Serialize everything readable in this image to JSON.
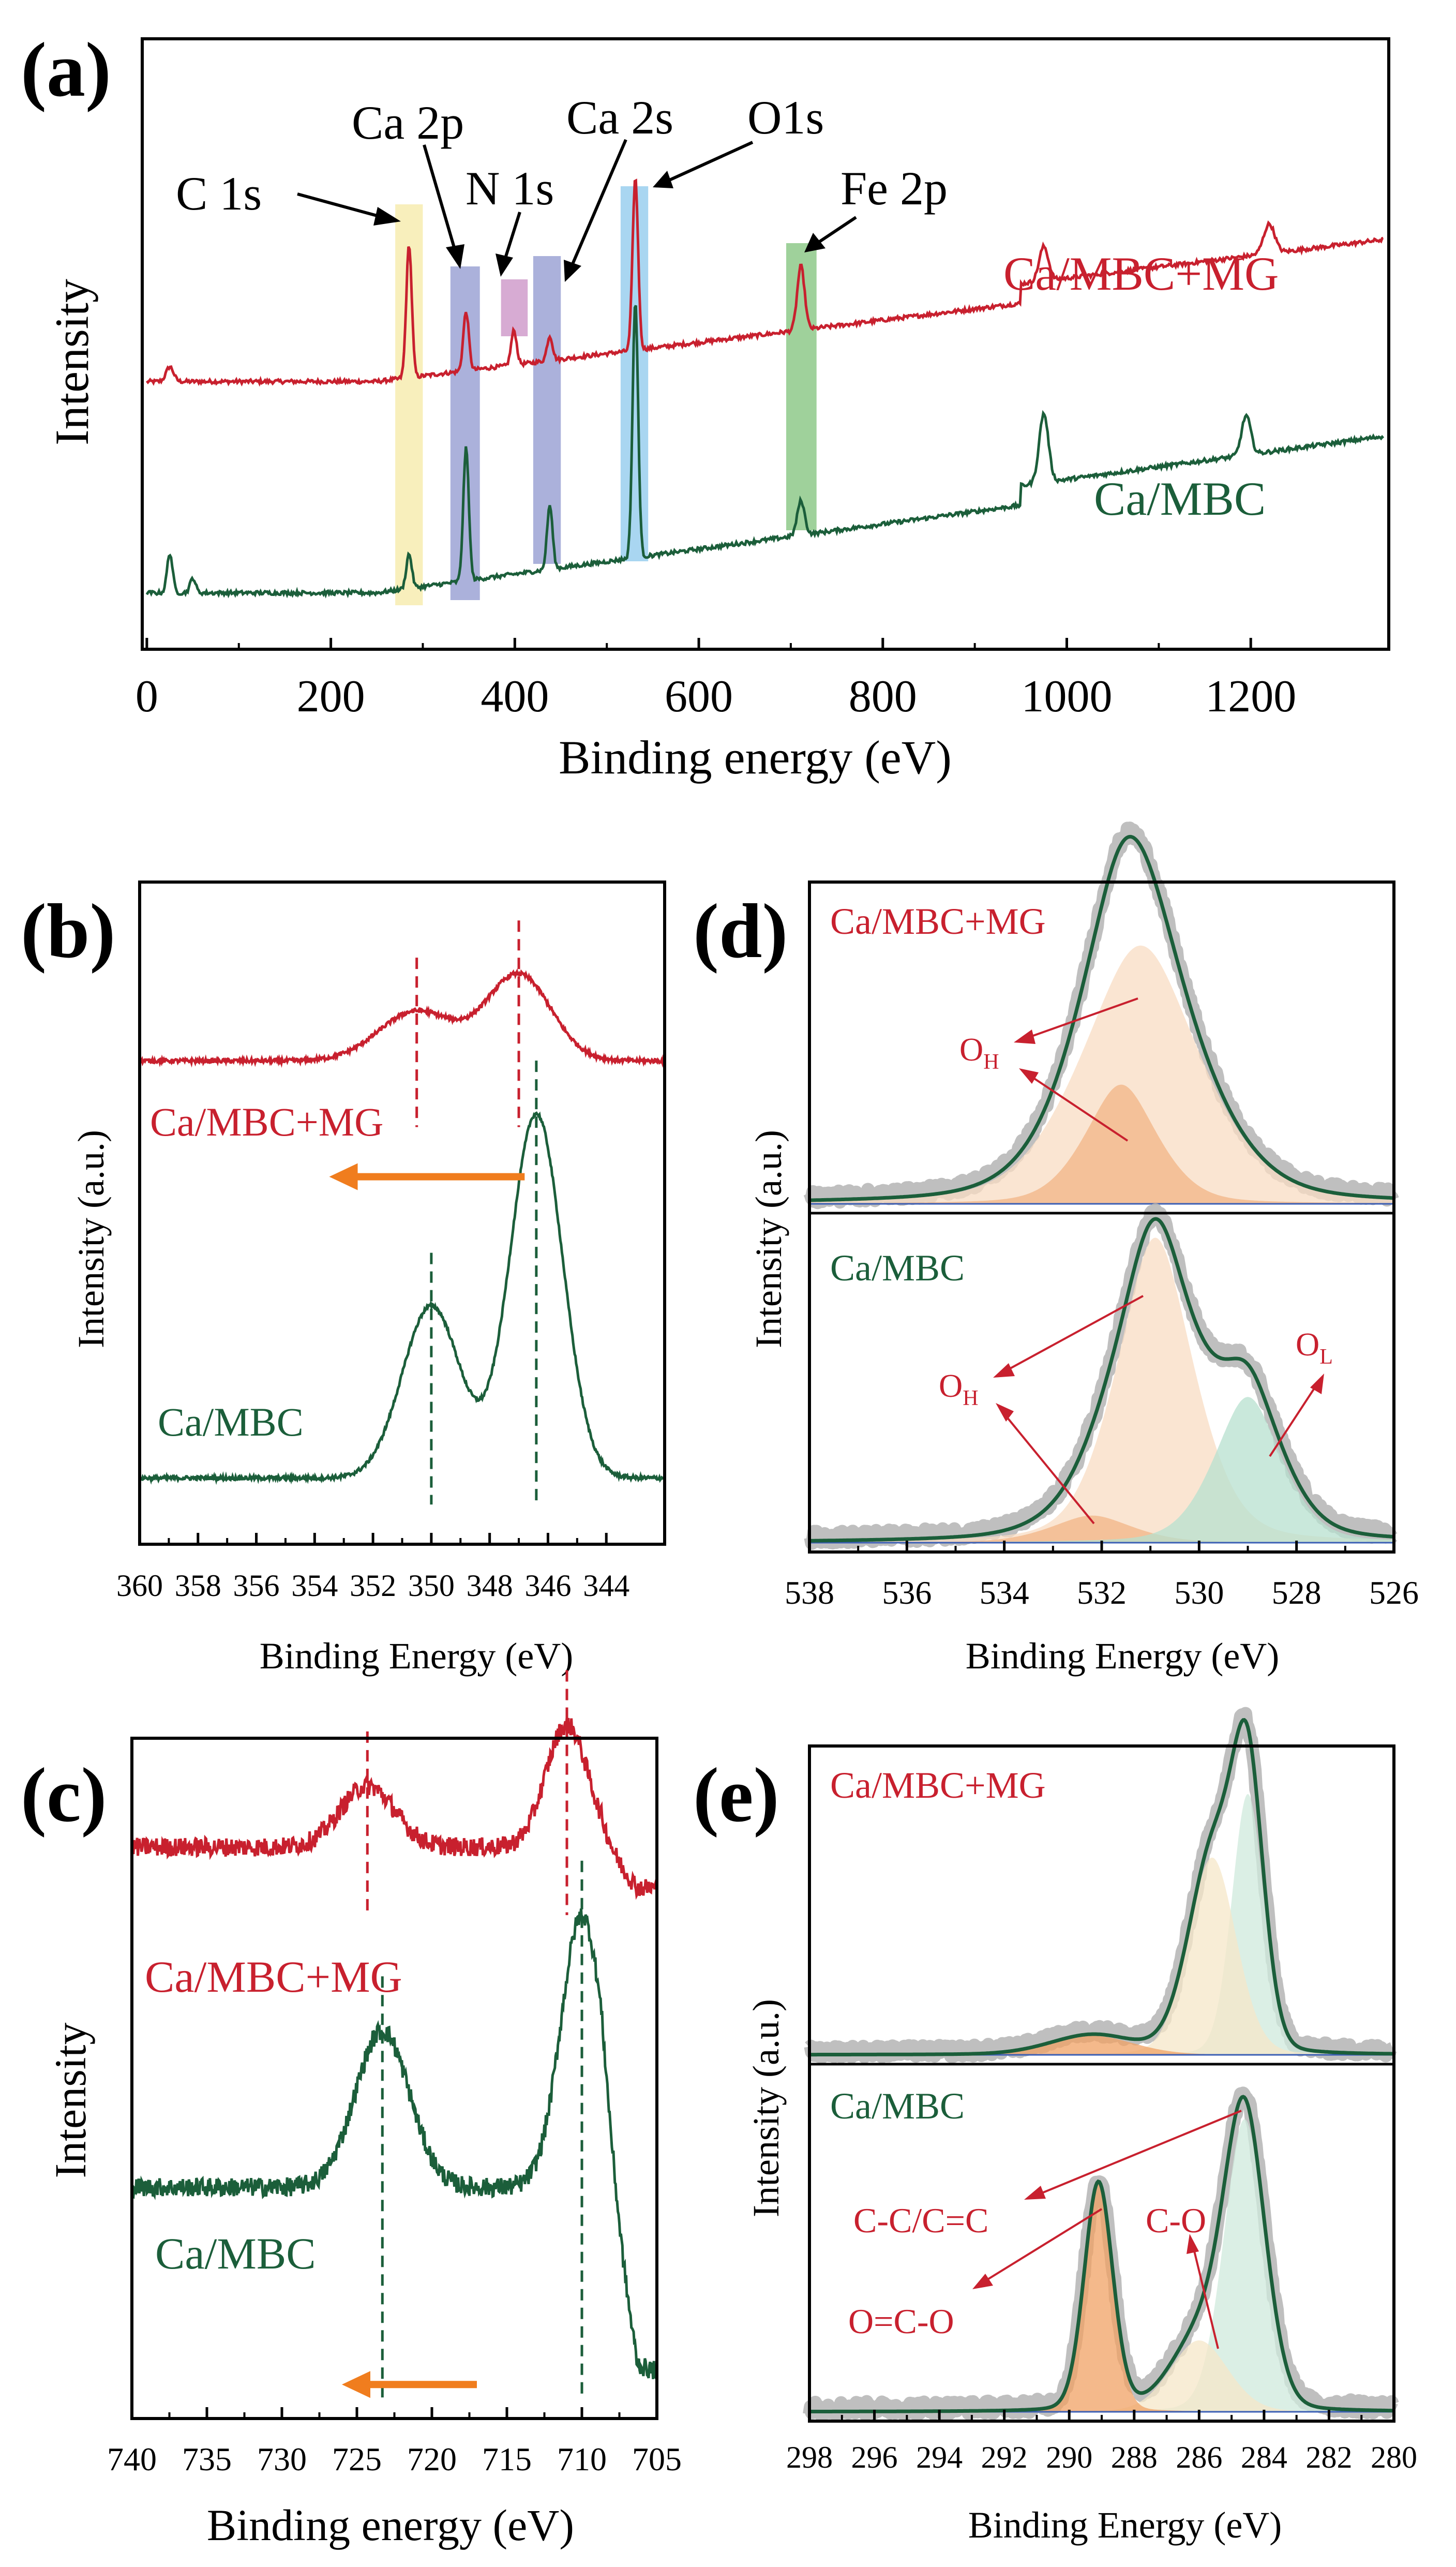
{
  "colors": {
    "red": "#c8202e",
    "green": "#1b5e3a",
    "orange": "#f07d1e",
    "gray": "#b4b4b4",
    "axis": "#000000",
    "c1s_band": "#f6e9a6",
    "ca2p_band": "#8f97cf",
    "n1s_band": "#c98fc4",
    "ca2s_band": "#8f97cf",
    "o1s_band": "#8cc8ec",
    "fe2p_band": "#7fc27a",
    "fit_oh_light": "#f8dcc3",
    "fit_oh_dark": "#f2b486",
    "fit_ol": "#b7e0cf",
    "fit_cc": "#cfe9dc",
    "fit_co": "#f5e7c8",
    "fit_oco": "#f0a264"
  },
  "chart_data": [
    {
      "id": "a",
      "type": "line",
      "panel_label": "(a)",
      "title": "",
      "xlabel": "Binding energy (eV)",
      "ylabel": "Intensity",
      "xlim": [
        -5,
        1350
      ],
      "ylim": [
        0,
        1
      ],
      "xticks": [
        0,
        200,
        400,
        600,
        800,
        1000,
        1200
      ],
      "xticklabels": [
        "0",
        "200",
        "400",
        "600",
        "800",
        "1000",
        "1200"
      ],
      "series": [
        {
          "name": "Ca/MBC+MG",
          "color": "#c8202e",
          "baseline": 0.45,
          "slope": 0.25,
          "peaks": [
            [
              25,
              0.03,
              4
            ],
            [
              285,
              0.27,
              3
            ],
            [
              347,
              0.12,
              3
            ],
            [
              399,
              0.07,
              3
            ],
            [
              438,
              0.05,
              3
            ],
            [
              531,
              0.35,
              3
            ],
            [
              711,
              0.13,
              4
            ],
            [
              975,
              0.07,
              5
            ],
            [
              1220,
              0.06,
              6
            ]
          ]
        },
        {
          "name": "Ca/MBC",
          "color": "#1b5e3a",
          "baseline": 0.02,
          "slope": 0.28,
          "peaks": [
            [
              25,
              0.08,
              3
            ],
            [
              50,
              0.03,
              3
            ],
            [
              285,
              0.07,
              3
            ],
            [
              347,
              0.27,
              3
            ],
            [
              438,
              0.13,
              3
            ],
            [
              531,
              0.52,
              3
            ],
            [
              711,
              0.07,
              4
            ],
            [
              975,
              0.14,
              5
            ],
            [
              1195,
              0.08,
              5
            ]
          ]
        }
      ],
      "legend": [
        "Ca/MBC+MG",
        "Ca/MBC"
      ],
      "bands": [
        {
          "label": "C 1s",
          "from": 270,
          "to": 300,
          "color_key": "c1s_band"
        },
        {
          "label": "Ca 2p",
          "from": 330,
          "to": 362,
          "color_key": "ca2p_band"
        },
        {
          "label": "N 1s",
          "from": 385,
          "to": 414,
          "color_key": "n1s_band"
        },
        {
          "label": "Ca 2s",
          "from": 420,
          "to": 450,
          "color_key": "ca2s_band"
        },
        {
          "label": "O1s",
          "from": 515,
          "to": 545,
          "color_key": "o1s_band"
        },
        {
          "label": "Fe 2p",
          "from": 695,
          "to": 728,
          "color_key": "fe2p_band"
        }
      ],
      "annotations": [
        "C 1s",
        "Ca 2p",
        "N 1s",
        "Ca 2s",
        "O1s",
        "Fe 2p"
      ]
    },
    {
      "id": "b",
      "type": "line",
      "panel_label": "(b)",
      "xlabel": "Binding Energy (eV)",
      "ylabel": "Intensity (a.u.)",
      "xlim": [
        360,
        342
      ],
      "ylim": [
        0,
        1
      ],
      "xticks": [
        360,
        358,
        356,
        354,
        352,
        350,
        348,
        346,
        344
      ],
      "xticklabels": [
        "360",
        "358",
        "356",
        "354",
        "352",
        "350",
        "348",
        "346",
        "344"
      ],
      "series": [
        {
          "name": "Ca/MBC+MG",
          "color": "#c8202e",
          "baseline": 0.73,
          "peaks": [
            [
              350.5,
              0.075,
              1.3
            ],
            [
              347.0,
              0.13,
              1.1
            ]
          ]
        },
        {
          "name": "Ca/MBC",
          "color": "#1b5e3a",
          "baseline": 0.1,
          "peaks": [
            [
              350.0,
              0.26,
              1.0
            ],
            [
              346.4,
              0.55,
              0.9
            ]
          ]
        }
      ],
      "dashed_lines": [
        {
          "series": "Ca/MBC+MG",
          "x": 350.5,
          "color_key": "red"
        },
        {
          "series": "Ca/MBC+MG",
          "x": 347.0,
          "color_key": "red"
        },
        {
          "series": "Ca/MBC",
          "x": 350.0,
          "color_key": "green"
        },
        {
          "series": "Ca/MBC",
          "x": 346.4,
          "color_key": "green"
        }
      ],
      "shift_arrow": {
        "from": 346.8,
        "to": 353.5,
        "y": 0.555
      },
      "legend": [
        "Ca/MBC+MG",
        "Ca/MBC"
      ]
    },
    {
      "id": "c",
      "type": "line",
      "panel_label": "(c)",
      "xlabel": "Binding energy (eV)",
      "ylabel": "Intensity",
      "xlim": [
        740,
        705
      ],
      "ylim": [
        0,
        1
      ],
      "xticks": [
        740,
        735,
        730,
        725,
        720,
        715,
        710,
        705
      ],
      "xticklabels": [
        "740",
        "735",
        "730",
        "725",
        "720",
        "715",
        "710",
        "705"
      ],
      "series": [
        {
          "name": "Ca/MBC+MG",
          "color": "#c8202e",
          "baseline": 0.84,
          "tail": 0.78,
          "peaks": [
            [
              724.3,
              0.09,
              1.8
            ],
            [
              711.0,
              0.18,
              1.4
            ]
          ]
        },
        {
          "name": "Ca/MBC",
          "color": "#1b5e3a",
          "baseline": 0.34,
          "tail": 0.07,
          "peaks": [
            [
              723.3,
              0.23,
              1.8
            ],
            [
              710.0,
              0.4,
              1.4
            ]
          ]
        }
      ],
      "dashed_lines": [
        {
          "series": "Ca/MBC+MG",
          "x": 724.3,
          "color_key": "red"
        },
        {
          "series": "Ca/MBC+MG",
          "x": 711.0,
          "color_key": "red"
        },
        {
          "series": "Ca/MBC",
          "x": 723.3,
          "color_key": "green"
        },
        {
          "series": "Ca/MBC",
          "x": 710.0,
          "color_key": "green"
        }
      ],
      "shift_arrow": {
        "from": 717,
        "to": 726,
        "y": 0.05
      },
      "legend": [
        "Ca/MBC+MG",
        "Ca/MBC"
      ]
    },
    {
      "id": "d",
      "type": "area",
      "panel_label": "(d)",
      "xlabel": "Binding Energy (eV)",
      "ylabel": "Intensity (a.u.)",
      "xlim": [
        538,
        526
      ],
      "xticks": [
        538,
        536,
        534,
        532,
        530,
        528,
        526
      ],
      "xticklabels": [
        "538",
        "536",
        "534",
        "532",
        "530",
        "528",
        "526"
      ],
      "subpanels": [
        {
          "name": "Ca/MBC+MG",
          "color": "#c8202e",
          "components": [
            {
              "label": "O_H",
              "center": 531.2,
              "height": 0.78,
              "width": 1.3,
              "color_key": "fit_oh_light"
            },
            {
              "label": "O_H",
              "center": 531.6,
              "height": 0.36,
              "width": 0.8,
              "color_key": "fit_oh_dark"
            }
          ],
          "annotations": [
            "O",
            "H"
          ]
        },
        {
          "name": "Ca/MBC",
          "color": "#1b5e3a",
          "components": [
            {
              "label": "O_H",
              "center": 530.9,
              "height": 0.9,
              "width": 0.85,
              "color_key": "fit_oh_light"
            },
            {
              "label": "O_H",
              "center": 532.2,
              "height": 0.08,
              "width": 0.9,
              "color_key": "fit_oh_dark"
            },
            {
              "label": "O_L",
              "center": 529.0,
              "height": 0.43,
              "width": 0.75,
              "color_key": "fit_ol"
            }
          ],
          "annotations": [
            "O",
            "H",
            "O",
            "L"
          ]
        }
      ],
      "legend": [
        "Ca/MBC+MG",
        "Ca/MBC"
      ]
    },
    {
      "id": "e",
      "type": "area",
      "panel_label": "(e)",
      "xlabel": "Binding Energy (eV)",
      "ylabel": "Intensity (a.u.)",
      "xlim": [
        298,
        280
      ],
      "xticks": [
        298,
        296,
        294,
        292,
        290,
        288,
        286,
        284,
        282,
        280
      ],
      "xticklabels": [
        "298",
        "296",
        "294",
        "292",
        "290",
        "288",
        "286",
        "284",
        "282",
        "280"
      ],
      "subpanels": [
        {
          "name": "Ca/MBC+MG",
          "color": "#c8202e",
          "components": [
            {
              "label": "C-C/C=C",
              "center": 284.5,
              "height": 0.82,
              "width": 0.5,
              "color_key": "fit_cc"
            },
            {
              "label": "C-O",
              "center": 285.6,
              "height": 0.62,
              "width": 0.75,
              "color_key": "fit_co"
            },
            {
              "label": "O=C-O",
              "center": 289.3,
              "height": 0.06,
              "width": 1.3,
              "color_key": "fit_oco"
            }
          ],
          "annotations": []
        },
        {
          "name": "Ca/MBC",
          "color": "#1b5e3a",
          "components": [
            {
              "label": "C-C/C=C",
              "center": 284.6,
              "height": 0.82,
              "width": 0.65,
              "color_key": "fit_cc"
            },
            {
              "label": "C-O",
              "center": 286.0,
              "height": 0.2,
              "width": 0.9,
              "color_key": "fit_co"
            },
            {
              "label": "O=C-O",
              "center": 289.1,
              "height": 0.64,
              "width": 0.45,
              "color_key": "fit_oco"
            }
          ],
          "annotations": [
            "C-C/C=C",
            "C-O",
            "O=C-O"
          ]
        }
      ],
      "legend": [
        "Ca/MBC+MG",
        "Ca/MBC"
      ]
    }
  ]
}
